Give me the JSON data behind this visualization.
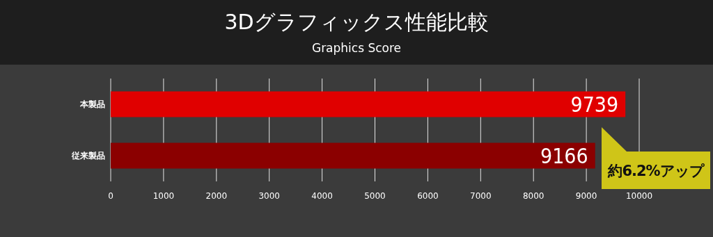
{
  "chart_data": {
    "type": "bar",
    "orientation": "horizontal",
    "title": "3Dグラフィックス性能比較",
    "subtitle": "Graphics Score",
    "categories": [
      "本製品",
      "従来製品"
    ],
    "values": [
      9739,
      9166
    ],
    "colors": [
      "#e00000",
      "#8b0000"
    ],
    "xlim": [
      0,
      10000
    ],
    "xticks": [
      0,
      1000,
      2000,
      3000,
      4000,
      5000,
      6000,
      7000,
      8000,
      9000,
      10000
    ],
    "grid": "x",
    "data_labels": true,
    "annotations": [
      "約6.2%アップ"
    ]
  }
}
